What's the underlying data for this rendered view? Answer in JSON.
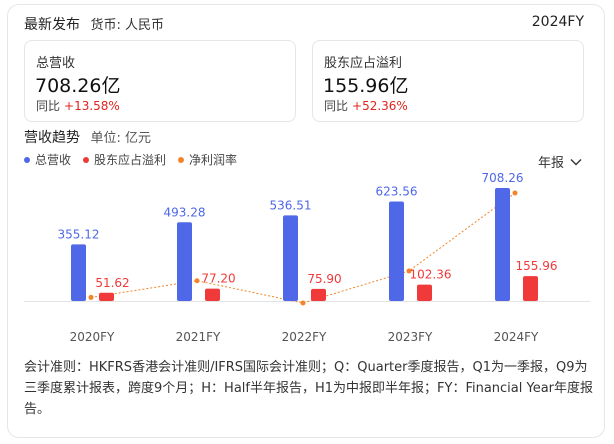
{
  "header": {
    "title": "最新发布",
    "currency": "货币: 人民币",
    "fiscal_year": "2024FY"
  },
  "kpis": [
    {
      "label": "总营收",
      "value": "708.26亿",
      "yoy_label": "同比",
      "yoy_change": "+13.58%"
    },
    {
      "label": "股东应占溢利",
      "value": "155.96亿",
      "yoy_label": "同比",
      "yoy_change": "+52.36%"
    }
  ],
  "trend": {
    "title": "营收趋势",
    "unit": "单位: 亿元",
    "period_selector": "年报"
  },
  "colors": {
    "revenue": "#4f68e8",
    "profit": "#f03a3a",
    "margin": "#f2852a",
    "positive_change": "#e0241f"
  },
  "chart_data": {
    "type": "bar",
    "categories": [
      "2020FY",
      "2021FY",
      "2022FY",
      "2023FY",
      "2024FY"
    ],
    "series": [
      {
        "name": "总营收",
        "kind": "bar",
        "values": [
          355.12,
          493.28,
          536.51,
          623.56,
          708.26
        ],
        "labels": [
          "355.12",
          "493.28",
          "536.51",
          "623.56",
          "708.26"
        ]
      },
      {
        "name": "股东应占溢利",
        "kind": "bar",
        "values": [
          51.62,
          77.2,
          75.9,
          102.36,
          155.96
        ],
        "labels": [
          "51.62",
          "77.20",
          "75.90",
          "102.36",
          "155.96"
        ]
      },
      {
        "name": "净利润率",
        "kind": "line",
        "values": [
          0.145,
          0.157,
          0.141,
          0.164,
          0.22
        ]
      }
    ],
    "legend_position": "top-left",
    "grid": false
  },
  "footnote": "会计准则：HKFRS香港会计准则/IFRS国际会计准则；Q：Quarter季度报告，Q1为一季报，Q9为三季度累计报表，跨度9个月；H：Half半年报告，H1为中报即半年报；FY：Financial Year年度报告。"
}
